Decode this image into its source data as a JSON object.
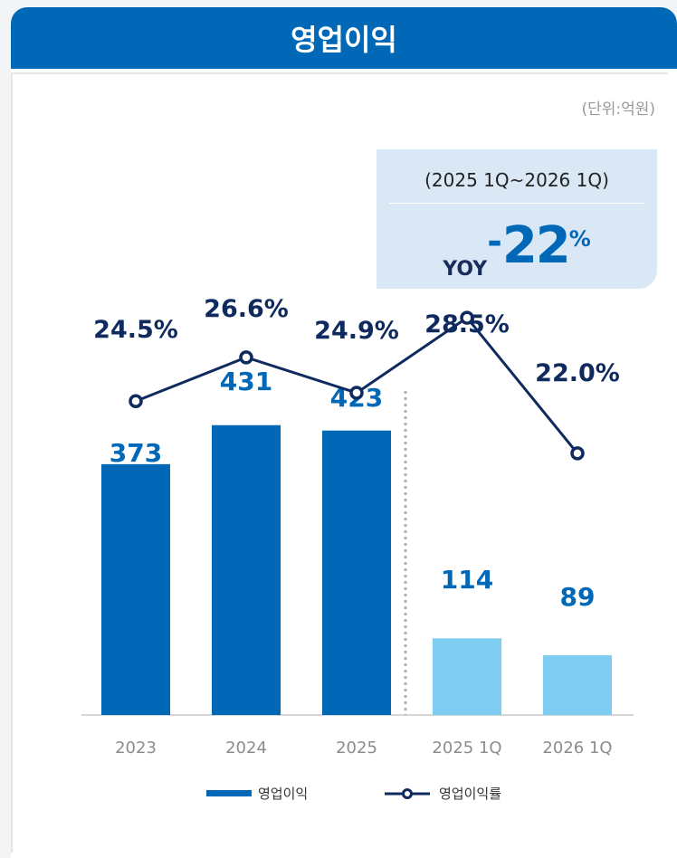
{
  "header": {
    "title": "영업이익"
  },
  "unit_label": "(단위:억원)",
  "yoy": {
    "period": "(2025 1Q~2026 1Q)",
    "label": "YOY",
    "sign": "-",
    "value": "22",
    "unit": "%"
  },
  "colors": {
    "header": "#0068b7",
    "bar_annual": "#0068b7",
    "bar_quarter": "#7fcdf0",
    "line": "#0f2a5e",
    "value_label": "#0068b7"
  },
  "chart_data": {
    "type": "bar",
    "categories": [
      "2023",
      "2024",
      "2025",
      "2025 1Q",
      "2026 1Q"
    ],
    "series": [
      {
        "name": "영업이익",
        "type": "bar",
        "values": [
          373,
          431,
          423,
          114,
          89
        ],
        "labels": [
          "373",
          "431",
          "423",
          "114",
          "89"
        ]
      },
      {
        "name": "영업이익률",
        "type": "line",
        "values": [
          24.5,
          26.6,
          24.9,
          28.5,
          22.0
        ],
        "labels": [
          "24.5%",
          "26.6%",
          "24.9%",
          "28.5%",
          "22.0%"
        ]
      }
    ],
    "xlabel": "",
    "ylabel": "",
    "grid": false,
    "legend": "bottom"
  }
}
